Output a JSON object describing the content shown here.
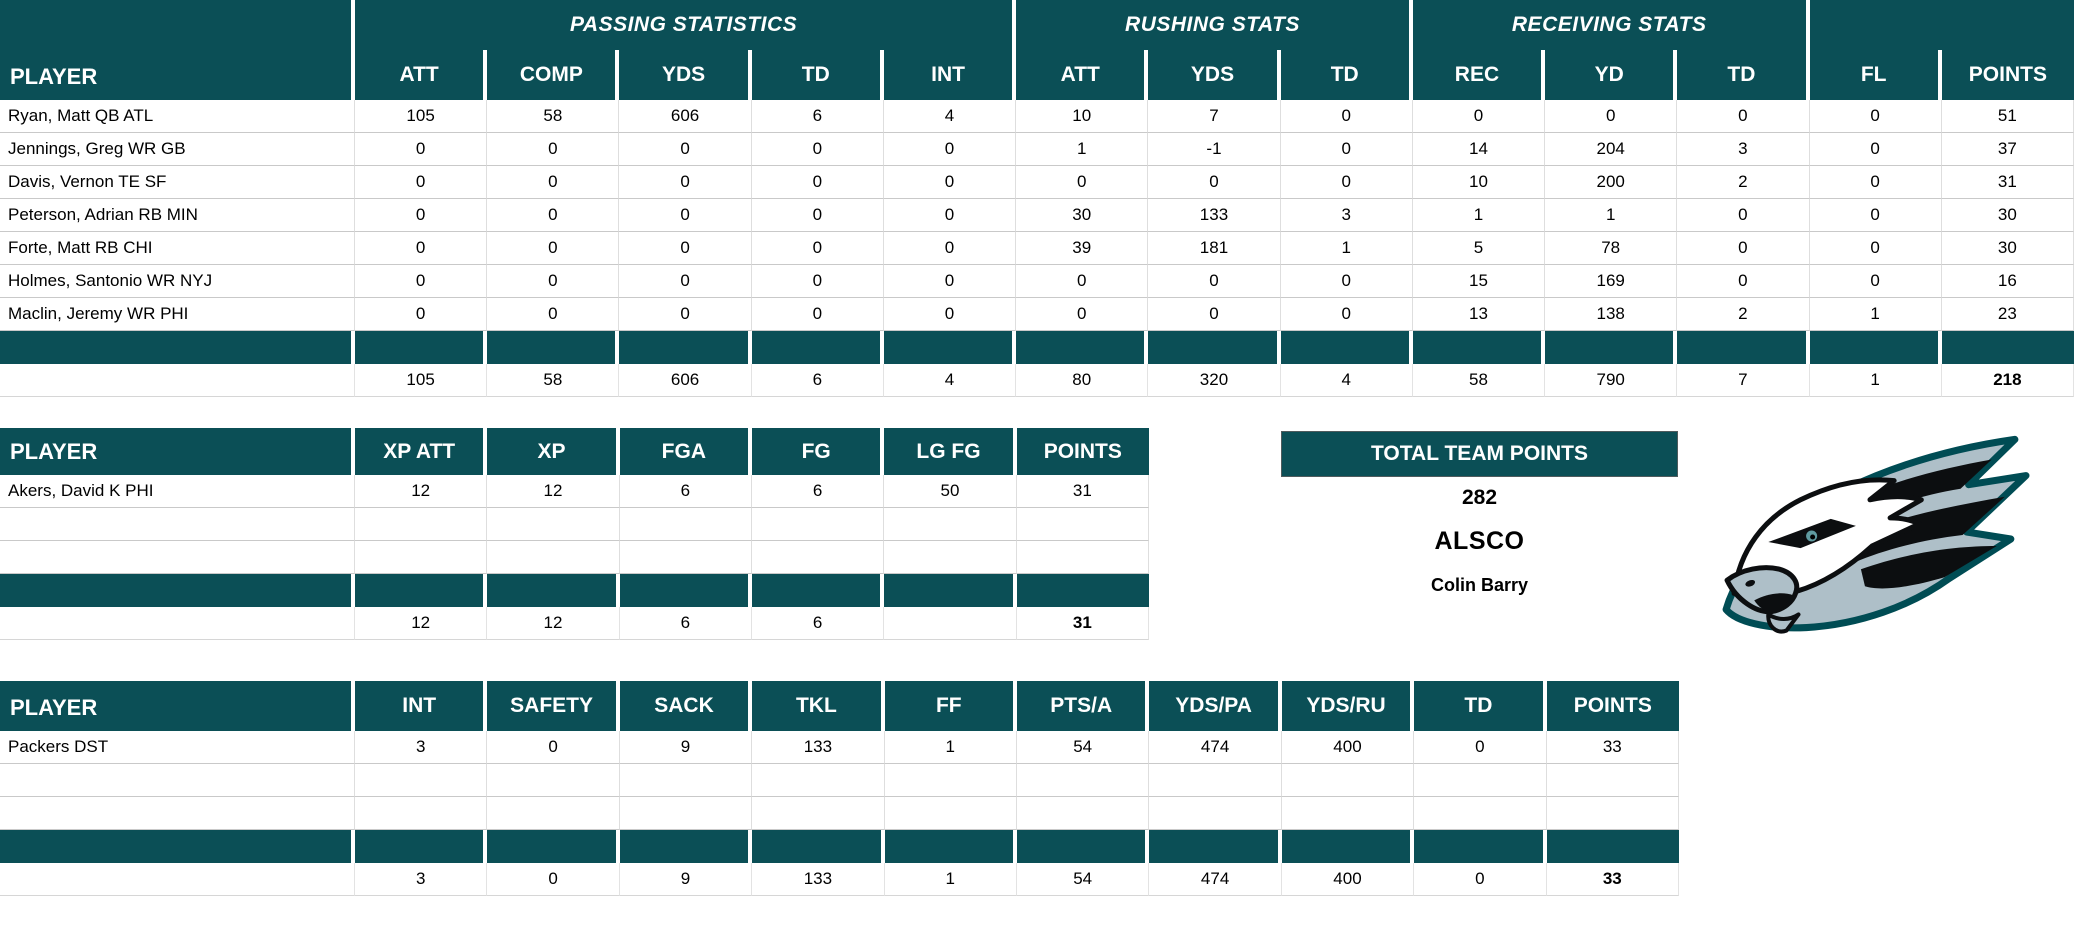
{
  "colors": {
    "header_bg": "#0B4F56",
    "band_bg": "#0B4F56",
    "grid_line": "#C9C9C9",
    "logo_green": "#004C54",
    "logo_silver": "#AEBFC8",
    "logo_black": "#0C0E10"
  },
  "panel": {
    "header": "TOTAL TEAM POINTS",
    "points": "282",
    "team": "ALSCO",
    "owner": "Colin Barry"
  },
  "icons": [
    {
      "name": "eagles-logo",
      "description": "Philadelphia Eagles eagle head logo"
    }
  ],
  "tables": [
    {
      "name": "offense",
      "groups": [
        {
          "label": "PASSING STATISTICS",
          "span": 5
        },
        {
          "label": "RUSHING STATS",
          "span": 3
        },
        {
          "label": "RECEIVING STATS",
          "span": 3
        },
        {
          "label": "",
          "span": 2
        }
      ],
      "columns": [
        "PLAYER",
        "ATT",
        "COMP",
        "YDS",
        "TD",
        "INT",
        "ATT",
        "YDS",
        "TD",
        "REC",
        "YD",
        "TD",
        "FL",
        "POINTS"
      ],
      "rows": [
        {
          "player": "Ryan, Matt QB ATL",
          "values": [
            "105",
            "58",
            "606",
            "6",
            "4",
            "10",
            "7",
            "0",
            "0",
            "0",
            "0",
            "0",
            "51"
          ]
        },
        {
          "player": "Jennings, Greg WR GB",
          "values": [
            "0",
            "0",
            "0",
            "0",
            "0",
            "1",
            "-1",
            "0",
            "14",
            "204",
            "3",
            "0",
            "37"
          ]
        },
        {
          "player": "Davis, Vernon TE SF",
          "values": [
            "0",
            "0",
            "0",
            "0",
            "0",
            "0",
            "0",
            "0",
            "10",
            "200",
            "2",
            "0",
            "31"
          ]
        },
        {
          "player": "Peterson, Adrian RB MIN",
          "values": [
            "0",
            "0",
            "0",
            "0",
            "0",
            "30",
            "133",
            "3",
            "1",
            "1",
            "0",
            "0",
            "30"
          ]
        },
        {
          "player": "Forte, Matt RB CHI",
          "values": [
            "0",
            "0",
            "0",
            "0",
            "0",
            "39",
            "181",
            "1",
            "5",
            "78",
            "0",
            "0",
            "30"
          ]
        },
        {
          "player": "Holmes, Santonio WR NYJ",
          "values": [
            "0",
            "0",
            "0",
            "0",
            "0",
            "0",
            "0",
            "0",
            "15",
            "169",
            "0",
            "0",
            "16"
          ]
        },
        {
          "player": "Maclin, Jeremy WR PHI",
          "values": [
            "0",
            "0",
            "0",
            "0",
            "0",
            "0",
            "0",
            "0",
            "13",
            "138",
            "2",
            "1",
            "23"
          ]
        }
      ],
      "empty_rows": 0,
      "totals": [
        "105",
        "58",
        "606",
        "6",
        "4",
        "80",
        "320",
        "4",
        "58",
        "790",
        "7",
        "1",
        "218"
      ]
    },
    {
      "name": "kicker",
      "columns": [
        "PLAYER",
        "XP ATT",
        "XP",
        "FGA",
        "FG",
        "LG FG",
        "POINTS"
      ],
      "rows": [
        {
          "player": "Akers, David K PHI",
          "values": [
            "12",
            "12",
            "6",
            "6",
            "50",
            "31"
          ]
        }
      ],
      "empty_rows": 2,
      "totals": [
        "12",
        "12",
        "6",
        "6",
        "",
        "31"
      ]
    },
    {
      "name": "dst",
      "columns": [
        "PLAYER",
        "INT",
        "SAFETY",
        "SACK",
        "TKL",
        "FF",
        "PTS/A",
        "YDS/PA",
        "YDS/RU",
        "TD",
        "POINTS"
      ],
      "rows": [
        {
          "player": "Packers DST",
          "values": [
            "3",
            "0",
            "9",
            "133",
            "1",
            "54",
            "474",
            "400",
            "0",
            "33"
          ]
        }
      ],
      "empty_rows": 2,
      "totals": [
        "3",
        "0",
        "9",
        "133",
        "1",
        "54",
        "474",
        "400",
        "0",
        "33"
      ]
    }
  ]
}
